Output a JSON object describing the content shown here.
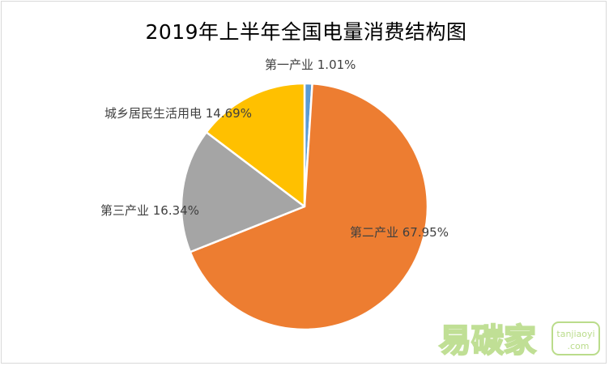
{
  "chart_data": {
    "type": "pie",
    "title": "2019年上半年全国电量消费结构图",
    "slices": [
      {
        "name": "第一产业",
        "value": 1.01,
        "label": "第一产业 1.01%",
        "color": "#5b9bd5"
      },
      {
        "name": "第二产业",
        "value": 67.95,
        "label": "第二产业 67.95%",
        "color": "#ed7d31"
      },
      {
        "name": "第三产业",
        "value": 16.34,
        "label": "第三产业 16.34%",
        "color": "#a5a5a5"
      },
      {
        "name": "城乡居民生活用电",
        "value": 14.69,
        "label": "城乡居民生活用电 14.69%",
        "color": "#ffc000"
      }
    ],
    "start_angle_deg": 0,
    "direction": "clockwise"
  },
  "watermark": {
    "brand": "易碳家",
    "domain_top": "tanjiaoyi",
    "domain_bottom": ".com",
    "color": "#8dc63f"
  }
}
